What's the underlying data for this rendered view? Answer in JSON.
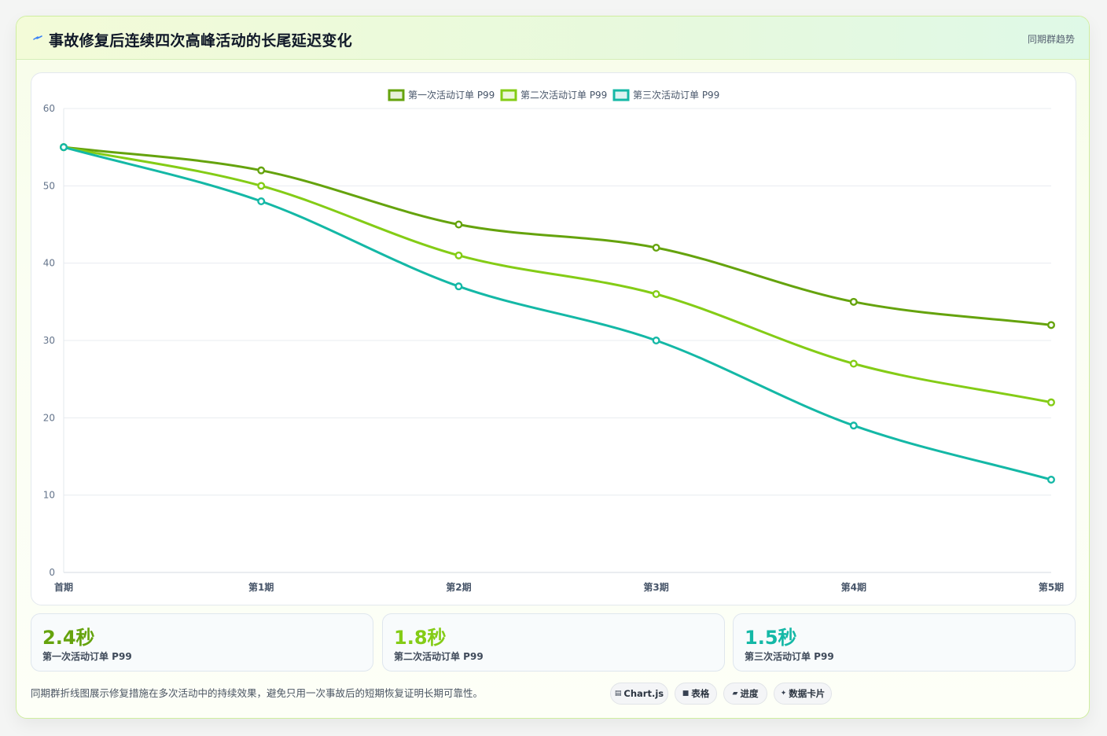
{
  "header": {
    "icon": "lightning-icon",
    "title": "事故修复后连续四次高峰活动的长尾延迟变化",
    "right_label": "同期群趋势"
  },
  "chart_data": {
    "type": "line",
    "categories": [
      "首期",
      "第1期",
      "第2期",
      "第3期",
      "第4期",
      "第5期"
    ],
    "series": [
      {
        "name": "第一次活动订单 P99",
        "color": "#65a30d",
        "values": [
          55,
          52,
          45,
          42,
          35,
          32
        ]
      },
      {
        "name": "第二次活动订单 P99",
        "color": "#84cc16",
        "values": [
          55,
          50,
          41,
          36,
          27,
          22
        ]
      },
      {
        "name": "第三次活动订单 P99",
        "color": "#14b8a6",
        "values": [
          55,
          48,
          37,
          30,
          19,
          12
        ]
      }
    ],
    "ylim": [
      0,
      60
    ],
    "yticks": [
      0,
      10,
      20,
      30,
      40,
      50,
      60
    ],
    "grid": true,
    "legend": "top-center",
    "xlabel": "",
    "ylabel": ""
  },
  "stats": [
    {
      "value": "2.4秒",
      "label": "第一次活动订单 P99",
      "color": "#65a30d"
    },
    {
      "value": "1.8秒",
      "label": "第二次活动订单 P99",
      "color": "#84cc16"
    },
    {
      "value": "1.5秒",
      "label": "第三次活动订单 P99",
      "color": "#14b8a6"
    }
  ],
  "footer": {
    "note": "同期群折线图展示修复措施在多次活动中的持续效果，避免只用一次事故后的短期恢复证明长期可靠性。",
    "pills": [
      {
        "icon": "chart-icon",
        "glyph": "▤",
        "label": "Chart.js"
      },
      {
        "icon": "table-icon",
        "glyph": "■",
        "label": "表格"
      },
      {
        "icon": "progress-icon",
        "glyph": "▰",
        "label": "进度"
      },
      {
        "icon": "sparkle-icon",
        "glyph": "✦",
        "label": "数据卡片"
      }
    ]
  }
}
